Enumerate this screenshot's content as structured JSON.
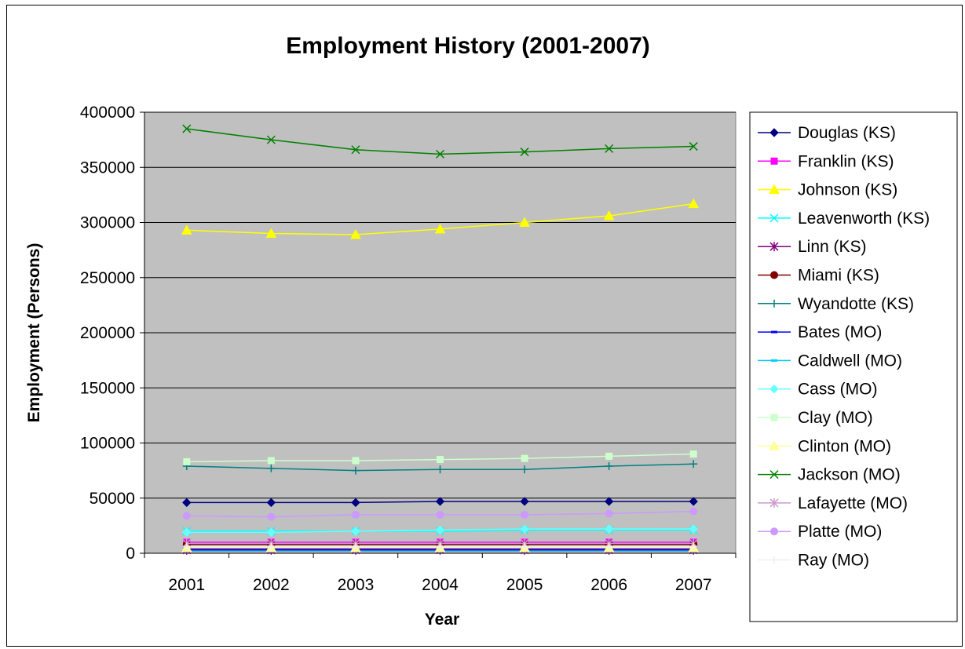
{
  "chart_data": {
    "type": "line",
    "title": "Employment History (2001-2007)",
    "xlabel": "Year",
    "ylabel": "Employment (Persons)",
    "ylim": [
      0,
      400000
    ],
    "yticks": [
      "400000",
      "350000",
      "300000",
      "250000",
      "200000",
      "150000",
      "100000",
      "50000",
      "0"
    ],
    "categories": [
      "2001",
      "2002",
      "2003",
      "2004",
      "2005",
      "2006",
      "2007"
    ],
    "grid": true,
    "legend_position": "right",
    "plot_background": "#c0c0c0",
    "series": [
      {
        "name": "Douglas (KS)",
        "color": "#000080",
        "marker": "diamond",
        "values": [
          46000,
          46000,
          46000,
          47000,
          47000,
          47000,
          47000
        ]
      },
      {
        "name": "Franklin (KS)",
        "color": "#ff00ff",
        "marker": "square",
        "values": [
          10000,
          10000,
          10000,
          10000,
          10000,
          10000,
          10000
        ]
      },
      {
        "name": "Johnson (KS)",
        "color": "#ffff00",
        "marker": "triangle",
        "values": [
          293000,
          290000,
          289000,
          294000,
          300000,
          306000,
          317000
        ]
      },
      {
        "name": "Leavenworth (KS)",
        "color": "#00ffff",
        "marker": "x",
        "values": [
          20000,
          20000,
          20000,
          20000,
          21000,
          21000,
          21000
        ]
      },
      {
        "name": "Linn (KS)",
        "color": "#800080",
        "marker": "star",
        "values": [
          3000,
          3000,
          3000,
          3000,
          3000,
          3000,
          3000
        ]
      },
      {
        "name": "Miami (KS)",
        "color": "#800000",
        "marker": "circle",
        "values": [
          8000,
          8000,
          8000,
          8000,
          8000,
          8000,
          8000
        ]
      },
      {
        "name": "Wyandotte (KS)",
        "color": "#008080",
        "marker": "plus",
        "values": [
          79000,
          77000,
          75000,
          76000,
          76000,
          79000,
          81000
        ]
      },
      {
        "name": "Bates (MO)",
        "color": "#0000ff",
        "marker": "dash",
        "values": [
          4000,
          4000,
          4000,
          4000,
          4000,
          4000,
          4000
        ]
      },
      {
        "name": "Caldwell (MO)",
        "color": "#00ccff",
        "marker": "dash",
        "values": [
          2000,
          2000,
          2000,
          2000,
          2000,
          2000,
          2000
        ]
      },
      {
        "name": "Cass (MO)",
        "color": "#66ffff",
        "marker": "diamond",
        "values": [
          19000,
          19000,
          20000,
          21000,
          22000,
          22000,
          22000
        ]
      },
      {
        "name": "Clay (MO)",
        "color": "#ccffcc",
        "marker": "square",
        "values": [
          83000,
          84000,
          84000,
          85000,
          86000,
          88000,
          90000
        ]
      },
      {
        "name": "Clinton (MO)",
        "color": "#ffff99",
        "marker": "triangle",
        "values": [
          5000,
          5000,
          5000,
          5000,
          5000,
          5000,
          5000
        ]
      },
      {
        "name": "Jackson (MO)",
        "color": "#008000",
        "marker": "x",
        "values": [
          385000,
          375000,
          366000,
          362000,
          364000,
          367000,
          369000
        ]
      },
      {
        "name": "Lafayette (MO)",
        "color": "#cc99cc",
        "marker": "star",
        "values": [
          9000,
          9000,
          9000,
          9000,
          9000,
          9000,
          9000
        ]
      },
      {
        "name": "Platte (MO)",
        "color": "#cc99ff",
        "marker": "circle",
        "values": [
          34000,
          33000,
          35000,
          35000,
          35000,
          36000,
          38000
        ]
      },
      {
        "name": "Ray (MO)",
        "color": "#f0f0f0",
        "marker": "plus",
        "values": [
          6000,
          6000,
          6000,
          6000,
          6000,
          6000,
          6000
        ]
      }
    ]
  }
}
